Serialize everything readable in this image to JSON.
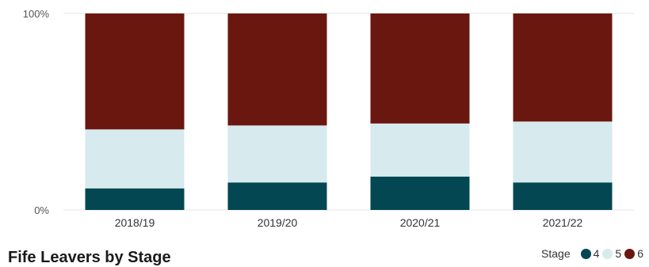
{
  "chart_data": {
    "type": "bar",
    "stacked": true,
    "normalized": true,
    "title": "Fife Leavers by Stage",
    "categories": [
      "2018/19",
      "2019/20",
      "2020/21",
      "2021/22"
    ],
    "series": [
      {
        "name": "4",
        "color": "#034752",
        "values": [
          11,
          14,
          17,
          14
        ]
      },
      {
        "name": "5",
        "color": "#d7eaed",
        "values": [
          30,
          29,
          27,
          31
        ]
      },
      {
        "name": "6",
        "color": "#6a1710",
        "values": [
          59,
          57,
          56,
          55
        ]
      }
    ],
    "ylim": [
      0,
      100
    ],
    "yticks": [
      "0%",
      "100%"
    ],
    "legend": {
      "title": "Stage",
      "position": "bottom-right"
    },
    "grid": true
  }
}
